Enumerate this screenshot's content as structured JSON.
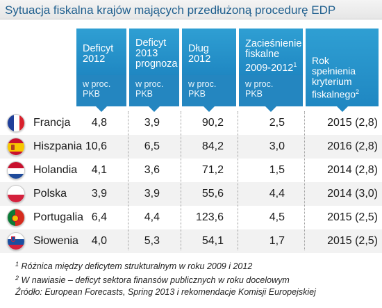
{
  "title": "Sytuacja fiskalna krajów mających przedłużoną procedurę EDP",
  "colors": {
    "header": "#1f87c2",
    "title": "#1f5f8e",
    "row_shade": "#f2f2f2"
  },
  "chart_data": {
    "type": "table",
    "title": "Sytuacja fiskalna krajów mających przedłużoną procedurę EDP",
    "columns": [
      {
        "label": "Deficyt 2012",
        "sub": "w proc. PKB"
      },
      {
        "label": "Deficyt 2013 prognoza",
        "sub": "w proc. PKB"
      },
      {
        "label": "Dług 2012",
        "sub": "w proc. PKB"
      },
      {
        "label": "Zacieśnienie fiskalne 2009-2012",
        "sup": "1",
        "sub": "w proc. PKB"
      },
      {
        "label": "Rok spełnienia kryterium fiskalnego",
        "sup": "2",
        "sub": ""
      }
    ],
    "rows": [
      {
        "country": "Francja",
        "flag": "flag-france-icon",
        "values": [
          "4,8",
          "3,9",
          "90,2",
          "2,5",
          "2015 (2,8)"
        ]
      },
      {
        "country": "Hiszpania",
        "flag": "flag-spain-icon",
        "values": [
          "10,6",
          "6,5",
          "84,2",
          "3,0",
          "2016 (2,8)"
        ]
      },
      {
        "country": "Holandia",
        "flag": "flag-netherlands-icon",
        "values": [
          "4,1",
          "3,6",
          "71,2",
          "1,5",
          "2014 (2,8)"
        ]
      },
      {
        "country": "Polska",
        "flag": "flag-poland-icon",
        "values": [
          "3,9",
          "3,9",
          "55,6",
          "4,4",
          "2014 (3,0)"
        ]
      },
      {
        "country": "Portugalia",
        "flag": "flag-portugal-icon",
        "values": [
          "6,4",
          "4,4",
          "123,6",
          "4,5",
          "2015 (2,5)"
        ]
      },
      {
        "country": "Słowenia",
        "flag": "flag-slovenia-icon",
        "values": [
          "4,0",
          "5,3",
          "54,1",
          "1,7",
          "2015 (2,5)"
        ]
      }
    ]
  },
  "notes": [
    {
      "sup": "1",
      "text": "Różnica między deficytem strukturalnym w roku 2009 i 2012"
    },
    {
      "sup": "2",
      "text": "W nawiasie – deficyt sektora finansów publicznych w roku docelowym"
    },
    {
      "sup": "",
      "text": "Źródło: European Forecasts, Spring 2013 i rekomendacje Komisji Europejskiej"
    }
  ]
}
